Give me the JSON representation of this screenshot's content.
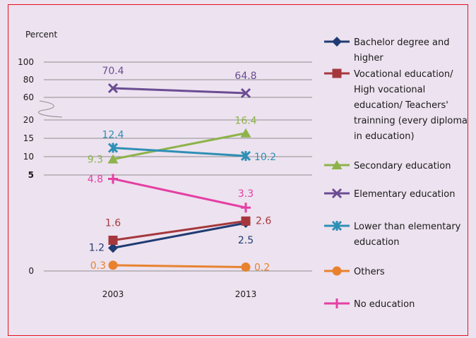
{
  "chart_data": {
    "type": "line",
    "title": "",
    "ylabel": "Percent",
    "xlabel": "",
    "categories": [
      "2003",
      "2013"
    ],
    "y_ticks": [
      "100",
      "80",
      "60",
      "20",
      "15",
      "10",
      "5",
      "0"
    ],
    "y_axis_break": "between 60 and 20",
    "grid": "horizontal",
    "legend_position": "right",
    "series": [
      {
        "name": "Bachelor degree and higher",
        "legend_lines": [
          "Bachelor degree and",
          "higher"
        ],
        "values": [
          1.2,
          2.5
        ],
        "labels": [
          "1.2",
          "2.5"
        ],
        "color": "#1f3b73",
        "marker": "diamond"
      },
      {
        "name": "Vocational education/ High vocational education/ Teachers' trainning (every diploma in education)",
        "legend_lines": [
          "Vocational education/",
          "High vocational",
          "education/ Teachers'",
          "trainning (every diploma",
          "in education)"
        ],
        "values": [
          1.6,
          2.6
        ],
        "labels": [
          "1.6",
          "2.6"
        ],
        "color": "#a5373c",
        "marker": "square"
      },
      {
        "name": "Secondary education",
        "legend_lines": [
          "Secondary education"
        ],
        "values": [
          9.3,
          16.4
        ],
        "labels": [
          "9.3",
          "16.4"
        ],
        "color": "#8db34a",
        "marker": "triangle"
      },
      {
        "name": "Elementary education",
        "legend_lines": [
          "Elementary education"
        ],
        "values": [
          70.4,
          64.8
        ],
        "labels": [
          "70.4",
          "64.8"
        ],
        "color": "#6a4c93",
        "marker": "x"
      },
      {
        "name": "Lower than elementary education",
        "legend_lines": [
          "Lower than elementary",
          "education"
        ],
        "values": [
          12.4,
          10.2
        ],
        "labels": [
          "12.4",
          "10.2"
        ],
        "color": "#2e8fb5",
        "marker": "star"
      },
      {
        "name": "Others",
        "legend_lines": [
          "Others"
        ],
        "values": [
          0.3,
          0.2
        ],
        "labels": [
          "0.3",
          "0.2"
        ],
        "color": "#e8822f",
        "marker": "circle"
      },
      {
        "name": "No education",
        "legend_lines": [
          "No education"
        ],
        "values": [
          4.8,
          3.3
        ],
        "labels": [
          "4.8",
          "3.3"
        ],
        "color": "#e43fa3",
        "marker": "plus"
      }
    ]
  }
}
